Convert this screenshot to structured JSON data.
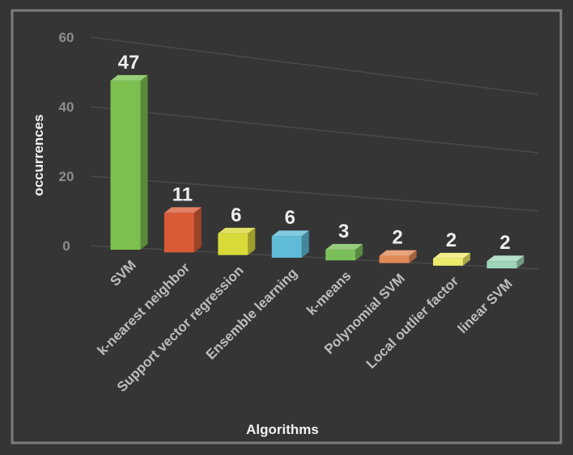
{
  "chart_data": {
    "type": "bar",
    "title": "",
    "xlabel": "Algorithms",
    "ylabel": "occurrences",
    "ylim": [
      0,
      60
    ],
    "yticks": [
      0,
      20,
      40,
      60
    ],
    "grid": true,
    "legend": "none",
    "categories": [
      "SVM",
      "k-nearest neighbor",
      "Support vector regression",
      "Ensemble learning",
      "k-means",
      "Polynomial SVM",
      "Local outlier factor",
      "linear SVM"
    ],
    "values": [
      47,
      11,
      6,
      6,
      3,
      2,
      2,
      2
    ],
    "colors": [
      "#7cc04f",
      "#d95b36",
      "#d8da3a",
      "#5fbbd6",
      "#7bbf5a",
      "#e18a57",
      "#eeea6a",
      "#9fd6b8"
    ]
  }
}
